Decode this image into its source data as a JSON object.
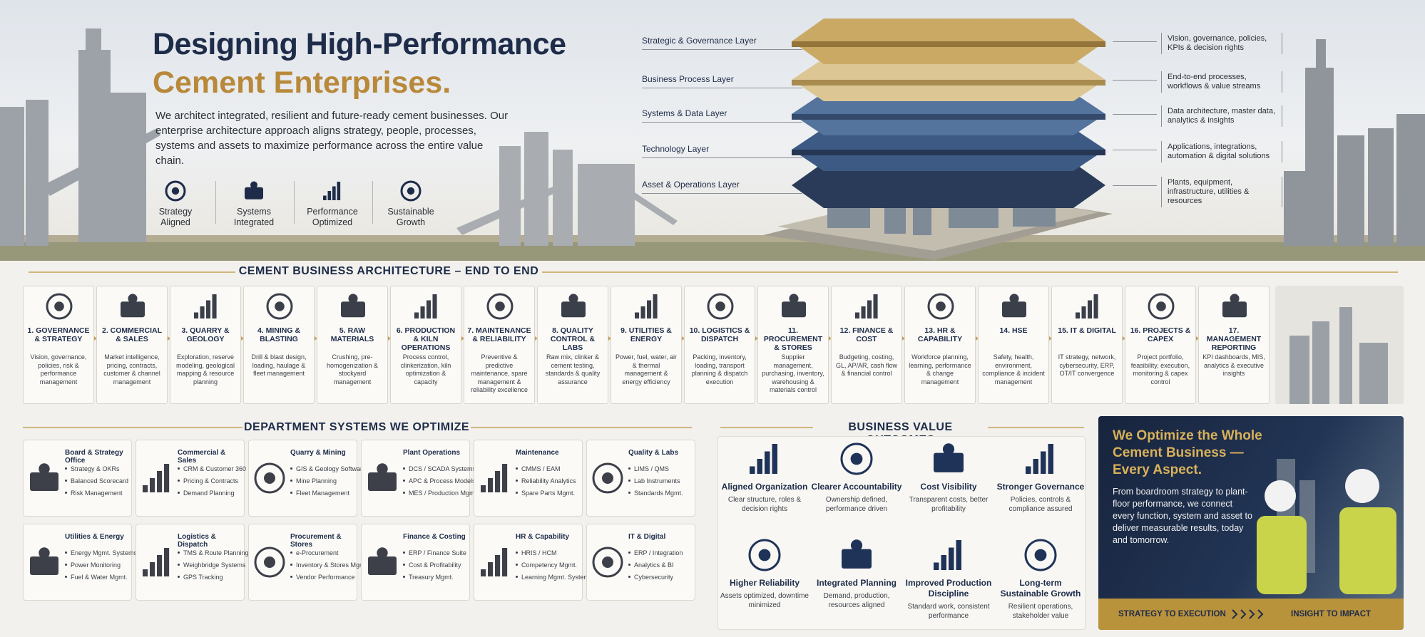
{
  "header": {
    "title_line1": "Designing High-Performance",
    "title_line2": "Cement Enterprises.",
    "description": "We architect integrated, resilient and future-ready cement businesses. Our enterprise architecture approach aligns strategy, people, processes, systems and assets to maximize performance across the entire value chain.",
    "badges": [
      "Strategy Aligned",
      "Systems Integrated",
      "Performance Optimized",
      "Sustainable Growth"
    ]
  },
  "layers": [
    {
      "name": "Strategic & Governance Layer",
      "description": "Vision, governance, policies, KPIs & decision rights"
    },
    {
      "name": "Business Process Layer",
      "description": "End-to-end processes, workflows & value streams"
    },
    {
      "name": "Systems & Data Layer",
      "description": "Data architecture, master data, analytics & insights"
    },
    {
      "name": "Technology Layer",
      "description": "Applications, integrations, automation & digital solutions"
    },
    {
      "name": "Asset & Operations Layer",
      "description": "Plants, equipment, infrastructure, utilities & resources"
    }
  ],
  "architecture": {
    "title": "CEMENT BUSINESS ARCHITECTURE – END TO END",
    "steps": [
      {
        "title": "1. GOVERNANCE & STRATEGY",
        "description": "Vision, governance, policies, risk & performance management"
      },
      {
        "title": "2. COMMERCIAL & SALES",
        "description": "Market intelligence, pricing, contracts, customer & channel management"
      },
      {
        "title": "3. QUARRY & GEOLOGY",
        "description": "Exploration, reserve modeling, geological mapping & resource planning"
      },
      {
        "title": "4. MINING & BLASTING",
        "description": "Drill & blast design, loading, haulage & fleet management"
      },
      {
        "title": "5. RAW MATERIALS",
        "description": "Crushing, pre-homogenization & stockyard management"
      },
      {
        "title": "6. PRODUCTION & KILN OPERATIONS",
        "description": "Process control, clinkerization, kiln optimization & capacity"
      },
      {
        "title": "7. MAINTENANCE & RELIABILITY",
        "description": "Preventive & predictive maintenance, spare management & reliability excellence"
      },
      {
        "title": "8. QUALITY CONTROL & LABS",
        "description": "Raw mix, clinker & cement testing, standards & quality assurance"
      },
      {
        "title": "9. UTILITIES & ENERGY",
        "description": "Power, fuel, water, air & thermal management & energy efficiency"
      },
      {
        "title": "10. LOGISTICS & DISPATCH",
        "description": "Packing, inventory, loading, transport planning & dispatch execution"
      },
      {
        "title": "11. PROCUREMENT & STORES",
        "description": "Supplier management, purchasing, inventory, warehousing & materials control"
      },
      {
        "title": "12. FINANCE & COST",
        "description": "Budgeting, costing, GL, AP/AR, cash flow & financial control"
      },
      {
        "title": "13. HR & CAPABILITY",
        "description": "Workforce planning, learning, performance & change management"
      },
      {
        "title": "14. HSE",
        "description": "Safety, health, environment, compliance & incident management"
      },
      {
        "title": "15. IT & DIGITAL",
        "description": "IT strategy, network, cybersecurity, ERP, OT/IT convergence"
      },
      {
        "title": "16. PROJECTS & CAPEX",
        "description": "Project portfolio, feasibility, execution, monitoring & capex control"
      },
      {
        "title": "17. MANAGEMENT REPORTING",
        "description": "KPI dashboards, MIS, analytics & executive insights"
      }
    ]
  },
  "departments": {
    "title": "DEPARTMENT SYSTEMS WE OPTIMIZE",
    "cards": [
      {
        "title": "Board & Strategy Office",
        "items": [
          "Strategy & OKRs",
          "Balanced Scorecard",
          "Risk Management"
        ]
      },
      {
        "title": "Commercial & Sales",
        "items": [
          "CRM & Customer 360",
          "Pricing & Contracts",
          "Demand Planning"
        ]
      },
      {
        "title": "Quarry & Mining",
        "items": [
          "GIS & Geology Software",
          "Mine Planning",
          "Fleet Management"
        ]
      },
      {
        "title": "Plant Operations",
        "items": [
          "DCS / SCADA Systems",
          "APC & Process Models",
          "MES / Production Mgmt."
        ]
      },
      {
        "title": "Maintenance",
        "items": [
          "CMMS / EAM",
          "Reliability Analytics",
          "Spare Parts Mgmt."
        ]
      },
      {
        "title": "Quality & Labs",
        "items": [
          "LIMS / QMS",
          "Lab Instruments",
          "Standards Mgmt."
        ]
      },
      {
        "title": "Utilities & Energy",
        "items": [
          "Energy Mgmt. Systems",
          "Power Monitoring",
          "Fuel & Water Mgmt."
        ]
      },
      {
        "title": "Logistics & Dispatch",
        "items": [
          "TMS & Route Planning",
          "Weighbridge Systems",
          "GPS Tracking"
        ]
      },
      {
        "title": "Procurement & Stores",
        "items": [
          "e-Procurement",
          "Inventory & Stores Mgmt.",
          "Vendor Performance"
        ]
      },
      {
        "title": "Finance & Costing",
        "items": [
          "ERP / Finance Suite",
          "Cost & Profitability",
          "Treasury Mgmt."
        ]
      },
      {
        "title": "HR & Capability",
        "items": [
          "HRIS / HCM",
          "Competency Mgmt.",
          "Learning Mgmt. System"
        ]
      },
      {
        "title": "IT & Digital",
        "items": [
          "ERP / Integration",
          "Analytics & BI",
          "Cybersecurity"
        ]
      }
    ]
  },
  "outcomes": {
    "title": "BUSINESS VALUE OUTCOMES",
    "items": [
      {
        "title": "Aligned Organization",
        "description": "Clear structure, roles & decision rights"
      },
      {
        "title": "Clearer Accountability",
        "description": "Ownership defined, performance driven"
      },
      {
        "title": "Cost Visibility",
        "description": "Transparent costs, better profitability"
      },
      {
        "title": "Stronger Governance",
        "description": "Policies, controls & compliance assured"
      },
      {
        "title": "Higher Reliability",
        "description": "Assets optimized, downtime minimized"
      },
      {
        "title": "Integrated Planning",
        "description": "Demand, production, resources aligned"
      },
      {
        "title": "Improved Production Discipline",
        "description": "Standard work, consistent performance"
      },
      {
        "title": "Long-term Sustainable Growth",
        "description": "Resilient operations, stakeholder value"
      }
    ]
  },
  "promo": {
    "title": "We Optimize the Whole Cement Business — Every Aspect.",
    "body": "From boardroom strategy to plant-floor performance, we connect every function, system and asset to deliver measurable results, today and tomorrow.",
    "footer_left": "STRATEGY TO EXECUTION",
    "footer_right": "INSIGHT TO IMPACT"
  }
}
